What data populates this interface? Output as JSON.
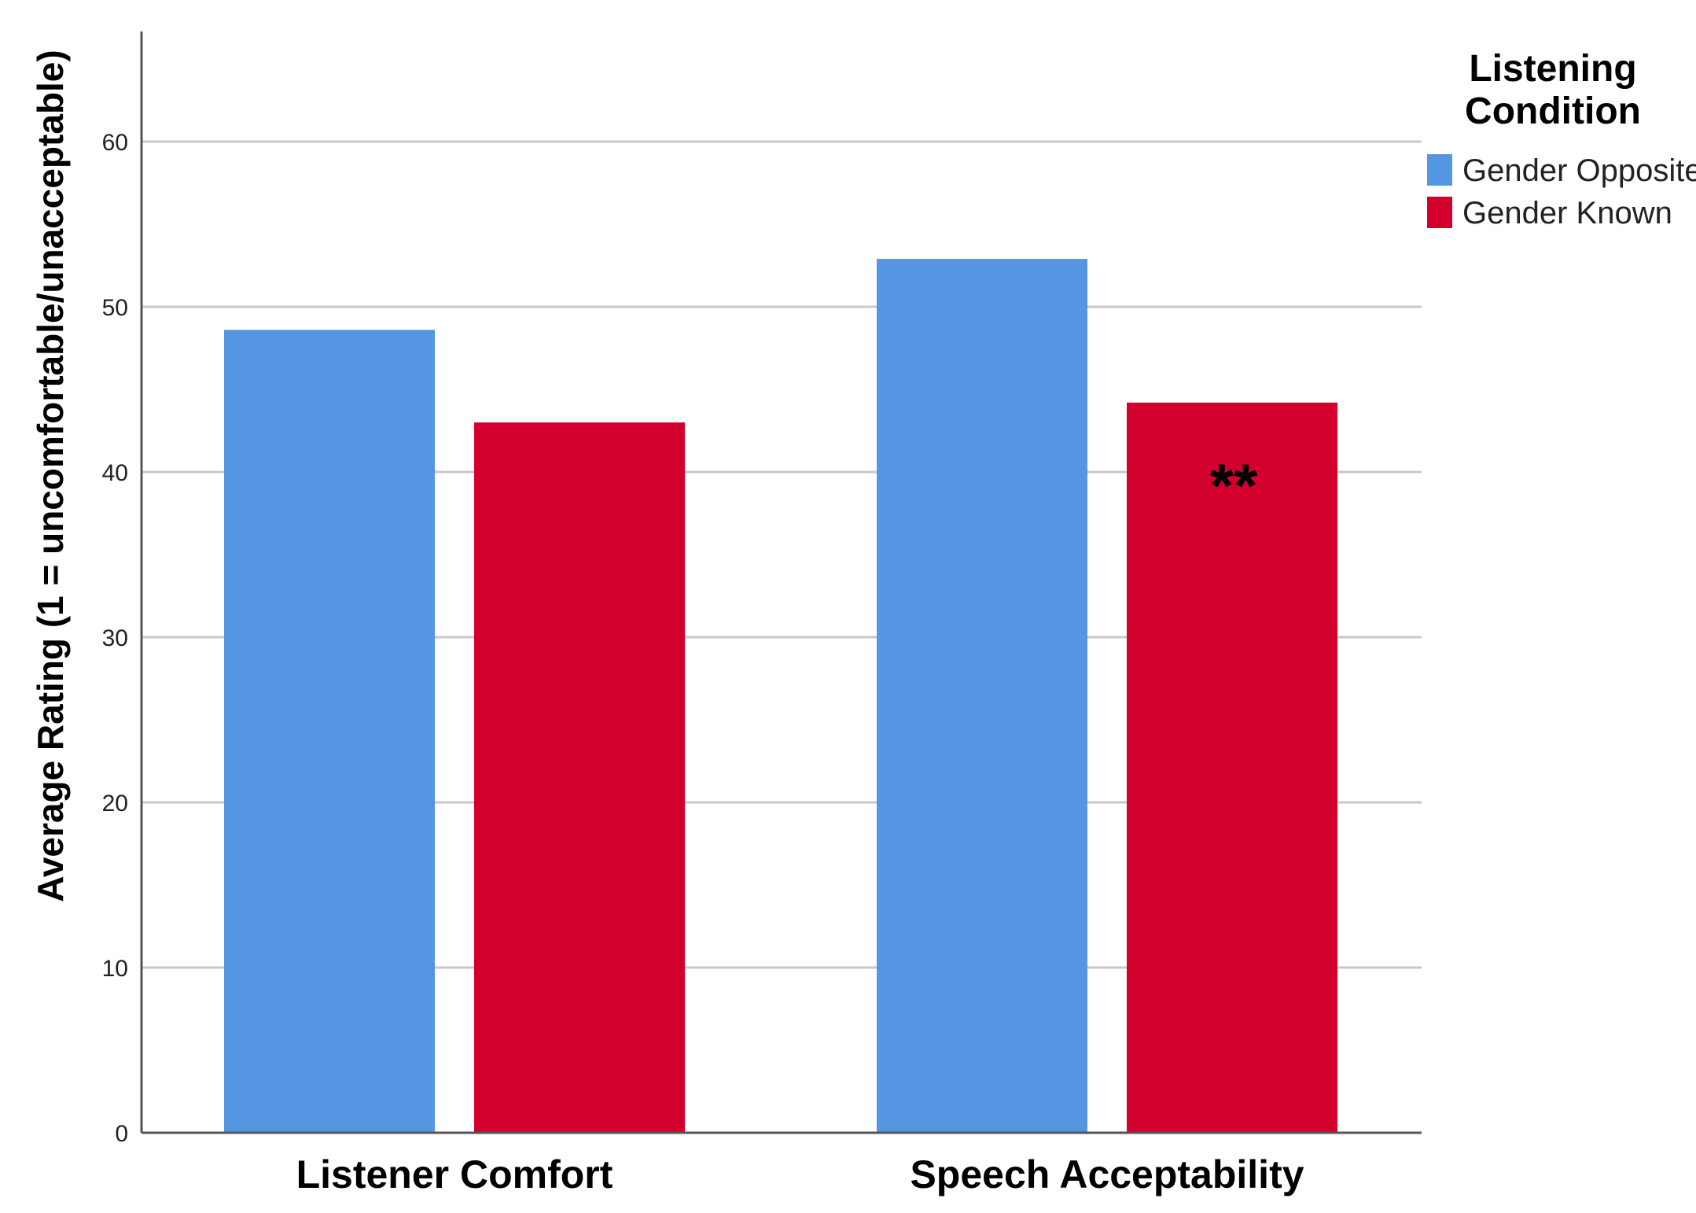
{
  "chart_data": {
    "type": "bar",
    "categories": [
      "Listener Comfort",
      "Speech Acceptability"
    ],
    "series": [
      {
        "name": "Gender Opposite",
        "color": "#5596E3",
        "values": [
          48.6,
          52.9
        ]
      },
      {
        "name": "Gender Known",
        "color": "#D3002E",
        "values": [
          43.0,
          44.2
        ]
      }
    ],
    "ylabel": "Average Rating (1 = uncomfortable/unacceptable)",
    "xlabel": "",
    "ylim": [
      0,
      60
    ],
    "yticks": [
      0,
      10,
      20,
      30,
      40,
      50,
      60
    ],
    "grid": true,
    "legend": {
      "title_line1": "Listening",
      "title_line2": "Condition",
      "placement": "top-right"
    },
    "annotations": [
      {
        "text": "**",
        "category": "Speech Acceptability",
        "series": "Gender Known"
      }
    ]
  }
}
